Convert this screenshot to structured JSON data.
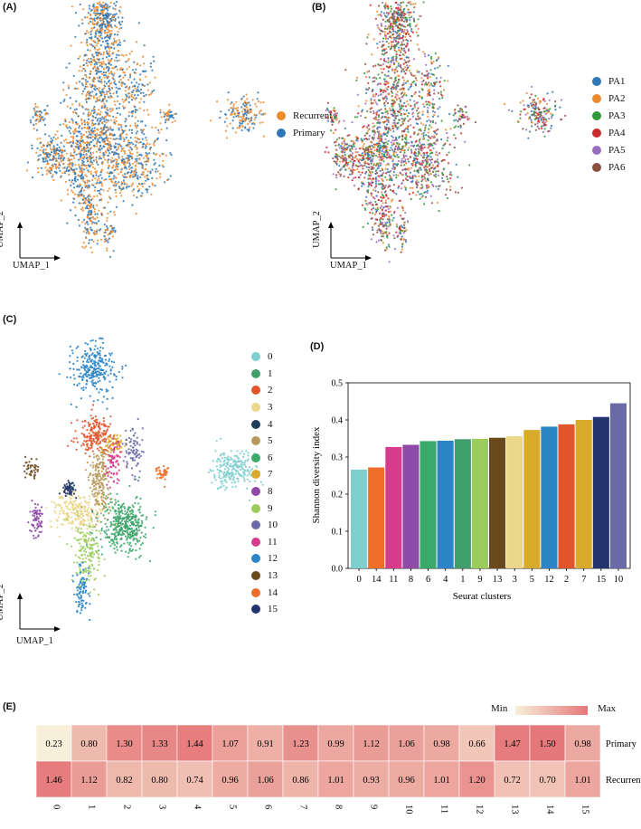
{
  "panels": {
    "a": "(A)",
    "b": "(B)",
    "c": "(C)",
    "d": "(D)",
    "e": "(E)"
  },
  "umap": {
    "x_label": "UMAP_1",
    "y_label": "UMAP_2"
  },
  "panel_a_legend": [
    {
      "label": "Recurrent",
      "color": "#ee8a2c"
    },
    {
      "label": "Primary",
      "color": "#2e78b8"
    }
  ],
  "panel_b_legend": [
    {
      "label": "PA1",
      "color": "#2e78b8"
    },
    {
      "label": "PA2",
      "color": "#ee8a2c"
    },
    {
      "label": "PA3",
      "color": "#2f9a3a"
    },
    {
      "label": "PA4",
      "color": "#cc2a2a"
    },
    {
      "label": "PA5",
      "color": "#9a6cc0"
    },
    {
      "label": "PA6",
      "color": "#8b5040"
    }
  ],
  "panel_c_legend": [
    {
      "label": "0",
      "color": "#7fcfcf"
    },
    {
      "label": "1",
      "color": "#3f9e6a"
    },
    {
      "label": "2",
      "color": "#e2542c"
    },
    {
      "label": "3",
      "color": "#ead78a"
    },
    {
      "label": "4",
      "color": "#1f3d5c"
    },
    {
      "label": "5",
      "color": "#b89a5c"
    },
    {
      "label": "6",
      "color": "#3aaa6a"
    },
    {
      "label": "7",
      "color": "#d9ab2c"
    },
    {
      "label": "8",
      "color": "#8e4aa6"
    },
    {
      "label": "9",
      "color": "#9ccc5c"
    },
    {
      "label": "10",
      "color": "#6a6aa6"
    },
    {
      "label": "11",
      "color": "#d83a8c"
    },
    {
      "label": "12",
      "color": "#2a84c6"
    },
    {
      "label": "13",
      "color": "#6a4a1c"
    },
    {
      "label": "14",
      "color": "#ef6f2a"
    },
    {
      "label": "15",
      "color": "#23336e"
    }
  ],
  "chart_data": [
    {
      "type": "bar",
      "title": "",
      "xlabel": "Seurat clusters",
      "ylabel": "Shannon diversity index",
      "ylim": [
        0,
        0.5
      ],
      "yticks": [
        "0.0",
        "0.1",
        "0.2",
        "0.3",
        "0.4",
        "0.5"
      ],
      "categories": [
        "0",
        "14",
        "11",
        "8",
        "6",
        "4",
        "1",
        "9",
        "13",
        "3",
        "5",
        "12",
        "2",
        "7",
        "15",
        "10"
      ],
      "values": [
        0.266,
        0.272,
        0.327,
        0.333,
        0.343,
        0.344,
        0.348,
        0.349,
        0.352,
        0.356,
        0.373,
        0.382,
        0.388,
        0.4,
        0.408,
        0.445
      ],
      "colors": [
        "#7fcfcf",
        "#ef6f2a",
        "#d83a8c",
        "#8e4aa6",
        "#3aaa6a",
        "#2a84c6",
        "#3f9e6a",
        "#9ccc5c",
        "#6a4a1c",
        "#ead78a",
        "#d9ab2c",
        "#2a84c6",
        "#e2542c",
        "#d9ab2c",
        "#23336e",
        "#6a6aa6"
      ]
    },
    {
      "type": "heatmap",
      "legend_min": "Min",
      "legend_max": "Max",
      "columns": [
        "0",
        "1",
        "2",
        "3",
        "4",
        "5",
        "6",
        "7",
        "8",
        "9",
        "10",
        "11",
        "12",
        "13",
        "14",
        "15"
      ],
      "rows": [
        {
          "name": "Primary",
          "values": [
            "0.23",
            "0.80",
            "1.30",
            "1.33",
            "1.44",
            "1.07",
            "0.91",
            "1.23",
            "0.99",
            "1.12",
            "1.06",
            "0.98",
            "0.66",
            "1.47",
            "1.50",
            "0.98"
          ]
        },
        {
          "name": "Recurrent",
          "values": [
            "1.46",
            "1.12",
            "0.82",
            "0.80",
            "0.74",
            "0.96",
            "1.06",
            "0.86",
            "1.01",
            "0.93",
            "0.96",
            "1.01",
            "1.20",
            "0.72",
            "0.70",
            "1.01"
          ]
        }
      ]
    }
  ]
}
